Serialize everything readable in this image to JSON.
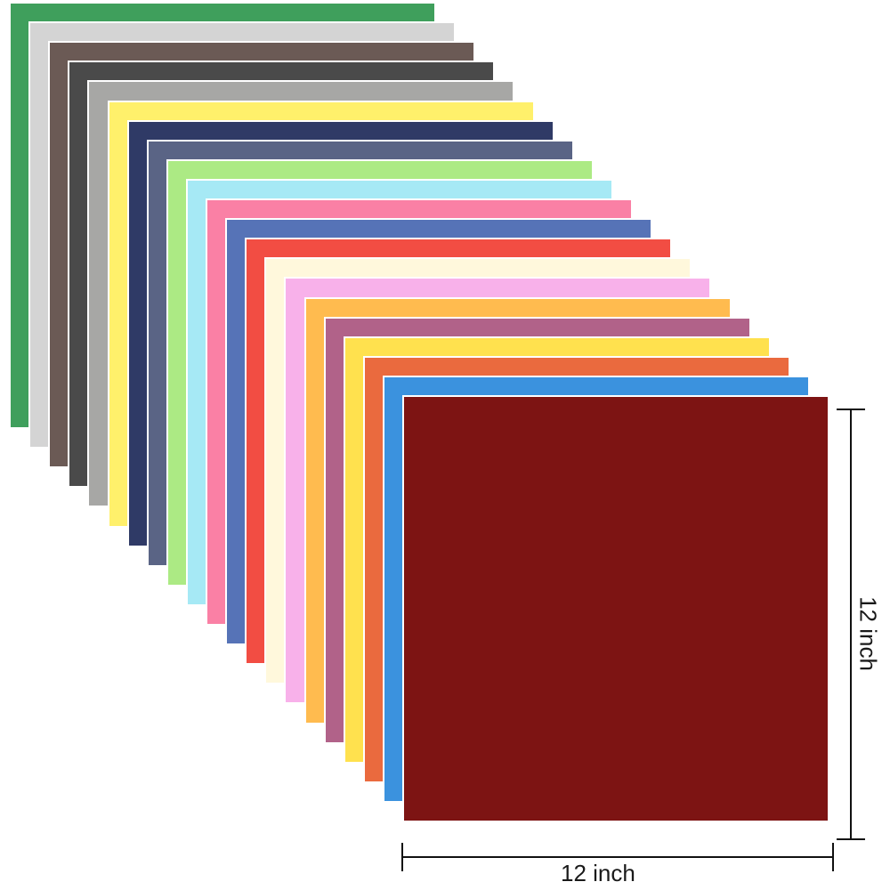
{
  "sheets": [
    {
      "name": "green",
      "color": "#3f9f5c"
    },
    {
      "name": "light-gray",
      "color": "#d4d4d4"
    },
    {
      "name": "brown",
      "color": "#6b5a55"
    },
    {
      "name": "charcoal",
      "color": "#4a4a4a"
    },
    {
      "name": "gray",
      "color": "#a7a7a5"
    },
    {
      "name": "yellow",
      "color": "#fff06b"
    },
    {
      "name": "navy",
      "color": "#2f3a66"
    },
    {
      "name": "slate-blue",
      "color": "#5a6485"
    },
    {
      "name": "lime",
      "color": "#acea84"
    },
    {
      "name": "sky-blue",
      "color": "#a6e9f5"
    },
    {
      "name": "pink",
      "color": "#fa80a5"
    },
    {
      "name": "royal-blue",
      "color": "#5673b7"
    },
    {
      "name": "red",
      "color": "#f24d43"
    },
    {
      "name": "cream",
      "color": "#fff8dc"
    },
    {
      "name": "light-pink",
      "color": "#f8b1ea"
    },
    {
      "name": "orange",
      "color": "#ffbb4f"
    },
    {
      "name": "mauve",
      "color": "#b16289"
    },
    {
      "name": "golden-yellow",
      "color": "#ffe14e"
    },
    {
      "name": "dark-orange",
      "color": "#ea6a3e"
    },
    {
      "name": "blue",
      "color": "#3b92de"
    },
    {
      "name": "maroon",
      "color": "#7d1413"
    }
  ],
  "dimensions": {
    "width_label": "12 inch",
    "height_label": "12 inch"
  }
}
